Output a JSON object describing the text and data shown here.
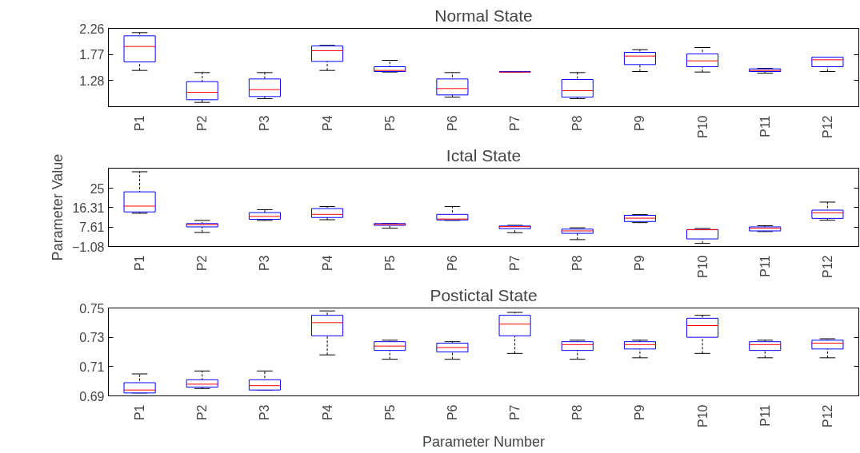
{
  "chart_data": [
    {
      "type": "box",
      "title": "Normal State",
      "categories": [
        "P1",
        "P2",
        "P3",
        "P4",
        "P5",
        "P6",
        "P7",
        "P8",
        "P9",
        "P10",
        "P11",
        "P12"
      ],
      "ylim": [
        0.79,
        2.26
      ],
      "yticks": [
        1.28,
        1.77,
        2.26
      ],
      "grid": false,
      "series": [
        {
          "color": "#0000ff",
          "boxes": [
            {
              "low": 1.47,
              "q1": 1.63,
              "median": 1.92,
              "q3": 2.12,
              "high": 2.18
            },
            {
              "low": 0.87,
              "q1": 0.92,
              "median": 1.06,
              "q3": 1.26,
              "high": 1.43
            },
            {
              "low": 0.94,
              "q1": 0.98,
              "median": 1.11,
              "q3": 1.31,
              "high": 1.43
            },
            {
              "low": 1.47,
              "q1": 1.64,
              "median": 1.84,
              "q3": 1.93,
              "high": 1.94
            },
            {
              "low": 1.44,
              "q1": 1.45,
              "median": 1.47,
              "q3": 1.54,
              "high": 1.66
            },
            {
              "low": 0.97,
              "q1": 1.01,
              "median": 1.13,
              "q3": 1.31,
              "high": 1.43
            },
            {
              "low": 1.44,
              "q1": 1.44,
              "median": 1.44,
              "q3": 1.45,
              "high": 1.45
            },
            {
              "low": 0.94,
              "q1": 0.97,
              "median": 1.09,
              "q3": 1.3,
              "high": 1.43
            },
            {
              "low": 1.45,
              "q1": 1.58,
              "median": 1.74,
              "q3": 1.81,
              "high": 1.86
            },
            {
              "low": 1.44,
              "q1": 1.54,
              "median": 1.65,
              "q3": 1.78,
              "high": 1.9
            },
            {
              "low": 1.42,
              "q1": 1.45,
              "median": 1.47,
              "q3": 1.5,
              "high": 1.51
            },
            {
              "low": 1.45,
              "q1": 1.54,
              "median": 1.67,
              "q3": 1.72,
              "high": 1.72
            }
          ]
        }
      ]
    },
    {
      "type": "box",
      "title": "Ictal State",
      "ylabel": "Parameter Value",
      "categories": [
        "P1",
        "P2",
        "P3",
        "P4",
        "P5",
        "P6",
        "P7",
        "P8",
        "P9",
        "P10",
        "P11",
        "P12"
      ],
      "ylim": [
        -1.08,
        34
      ],
      "yticks": [
        -1.08,
        7.61,
        16.31,
        25
      ],
      "grid": false,
      "series": [
        {
          "color": "#0000ff",
          "boxes": [
            {
              "low": 13.8,
              "q1": 14.4,
              "median": 17.0,
              "q3": 23.4,
              "high": 32.4
            },
            {
              "low": 5.2,
              "q1": 7.7,
              "median": 8.7,
              "q3": 9.2,
              "high": 10.6
            },
            {
              "low": 10.6,
              "q1": 11.1,
              "median": 12.4,
              "q3": 14.1,
              "high": 15.4
            },
            {
              "low": 10.9,
              "q1": 11.9,
              "median": 13.3,
              "q3": 15.9,
              "high": 16.8
            },
            {
              "low": 7.1,
              "q1": 8.4,
              "median": 8.8,
              "q3": 9.2,
              "high": 9.3
            },
            {
              "low": 10.6,
              "q1": 10.8,
              "median": 11.2,
              "q3": 13.3,
              "high": 16.8
            },
            {
              "low": 5.1,
              "q1": 6.9,
              "median": 7.8,
              "q3": 8.1,
              "high": 8.4
            },
            {
              "low": 2.0,
              "q1": 4.8,
              "median": 5.9,
              "q3": 6.7,
              "high": 7.3
            },
            {
              "low": 9.6,
              "q1": 10.1,
              "median": 11.6,
              "q3": 12.9,
              "high": 13.2
            },
            {
              "low": 0.3,
              "q1": 2.3,
              "median": 6.4,
              "q3": 6.5,
              "high": 7.0
            },
            {
              "low": 5.6,
              "q1": 5.9,
              "median": 7.1,
              "q3": 7.7,
              "high": 8.2
            },
            {
              "low": 10.7,
              "q1": 11.5,
              "median": 14.0,
              "q3": 15.2,
              "high": 18.8
            }
          ]
        }
      ]
    },
    {
      "type": "box",
      "title": "Postictal State",
      "xlabel": "Parameter Number",
      "categories": [
        "P1",
        "P2",
        "P3",
        "P4",
        "P5",
        "P6",
        "P7",
        "P8",
        "P9",
        "P10",
        "P11",
        "P12"
      ],
      "ylim": [
        0.69,
        0.75
      ],
      "yticks": [
        0.69,
        0.71,
        0.73,
        0.75
      ],
      "grid": false,
      "series": [
        {
          "color": "#0000ff",
          "boxes": [
            {
              "low": 0.692,
              "q1": 0.692,
              "median": 0.694,
              "q3": 0.699,
              "high": 0.705
            },
            {
              "low": 0.695,
              "q1": 0.696,
              "median": 0.698,
              "q3": 0.701,
              "high": 0.707
            },
            {
              "low": 0.694,
              "q1": 0.694,
              "median": 0.697,
              "q3": 0.701,
              "high": 0.707
            },
            {
              "low": 0.718,
              "q1": 0.731,
              "median": 0.74,
              "q3": 0.745,
              "high": 0.748
            },
            {
              "low": 0.715,
              "q1": 0.721,
              "median": 0.724,
              "q3": 0.727,
              "high": 0.728
            },
            {
              "low": 0.715,
              "q1": 0.72,
              "median": 0.723,
              "q3": 0.726,
              "high": 0.727
            },
            {
              "low": 0.719,
              "q1": 0.731,
              "median": 0.739,
              "q3": 0.745,
              "high": 0.747
            },
            {
              "low": 0.715,
              "q1": 0.721,
              "median": 0.725,
              "q3": 0.727,
              "high": 0.728
            },
            {
              "low": 0.716,
              "q1": 0.722,
              "median": 0.725,
              "q3": 0.727,
              "high": 0.728
            },
            {
              "low": 0.719,
              "q1": 0.73,
              "median": 0.738,
              "q3": 0.743,
              "high": 0.745
            },
            {
              "low": 0.716,
              "q1": 0.721,
              "median": 0.725,
              "q3": 0.727,
              "high": 0.728
            },
            {
              "low": 0.716,
              "q1": 0.722,
              "median": 0.726,
              "q3": 0.728,
              "high": 0.729
            }
          ]
        }
      ]
    }
  ]
}
